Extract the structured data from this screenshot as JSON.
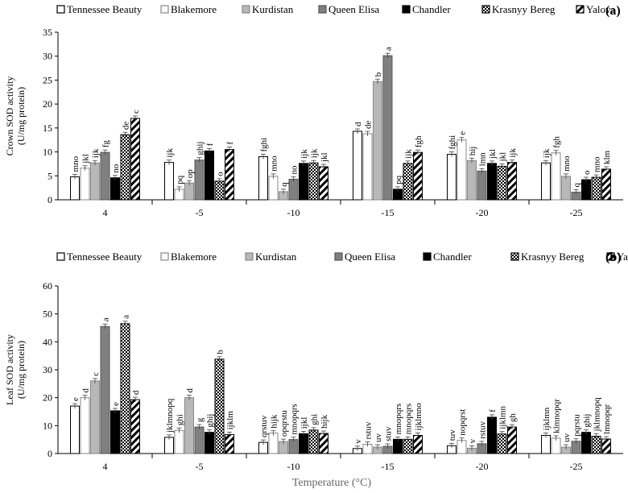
{
  "chart_data": [
    {
      "type": "bar",
      "panel_label": "(a)",
      "ylabel_line1": "Crown SOD activity",
      "ylabel_line2": "(U/mg protein)",
      "ylim": [
        0,
        35
      ],
      "yticks": [
        0,
        5,
        10,
        15,
        20,
        25,
        30,
        35
      ],
      "categories": [
        "4",
        "-5",
        "-10",
        "-15",
        "-20",
        "-25"
      ],
      "legend_position": "top",
      "grid": false,
      "series": [
        {
          "name": "Tennessee Beauty",
          "values": [
            4.8,
            7.8,
            9.0,
            14.3,
            9.5,
            7.7
          ],
          "letters": [
            "mno",
            "ijk",
            "fghi",
            "d",
            "fghi",
            "ijk"
          ]
        },
        {
          "name": "Blakemore",
          "values": [
            6.6,
            2.2,
            4.9,
            13.8,
            12.5,
            9.8
          ],
          "letters": [
            "jkl",
            "pq",
            "mno",
            "de",
            "e",
            "fgh"
          ]
        },
        {
          "name": "Kurdistan",
          "values": [
            7.7,
            3.5,
            1.7,
            24.7,
            8.2,
            4.9
          ],
          "letters": [
            "ijk",
            "op",
            "q",
            "b",
            "hij",
            "mno"
          ]
        },
        {
          "name": "Queen Elisa",
          "values": [
            9.9,
            8.3,
            4.3,
            30.1,
            6.0,
            1.6
          ],
          "letters": [
            "fg",
            "ghij",
            "no",
            "a",
            "lmn",
            "q"
          ]
        },
        {
          "name": "Chandler",
          "values": [
            4.6,
            10.2,
            7.6,
            2.2,
            7.6,
            4.2
          ],
          "letters": [
            "no",
            "f",
            "ijk",
            "pq",
            "jkl",
            "o"
          ]
        },
        {
          "name": "Krasnyy Bereg",
          "values": [
            13.6,
            3.9,
            7.7,
            7.6,
            7.0,
            4.7
          ],
          "letters": [
            "de",
            "o",
            "ijk",
            "ijk",
            "jkl",
            "mno"
          ]
        },
        {
          "name": "Yalova",
          "values": [
            17.0,
            10.5,
            6.9,
            9.9,
            7.8,
            6.4
          ],
          "letters": [
            "c",
            "f",
            "jkl",
            "fgh",
            "ijk",
            "klm"
          ]
        }
      ]
    },
    {
      "type": "bar",
      "panel_label": "(b)",
      "ylabel_line1": "Leaf SOD activity",
      "ylabel_line2": "(U/mg protein)",
      "xlabel": "Temperature (°C)",
      "ylim": [
        0,
        60
      ],
      "yticks": [
        0,
        10,
        20,
        30,
        40,
        50,
        60
      ],
      "categories": [
        "4",
        "-5",
        "-10",
        "-15",
        "-20",
        "-25"
      ],
      "legend_position": "top",
      "grid": false,
      "series": [
        {
          "name": "Tennessee Beauty",
          "values": [
            17.0,
            5.8,
            4.0,
            1.8,
            2.8,
            6.5
          ],
          "letters": [
            "e",
            "jklmnopq",
            "qrstuv",
            "v",
            "tuv",
            "ijklmn"
          ]
        },
        {
          "name": "Blakemore",
          "values": [
            20.0,
            8.3,
            7.3,
            3.3,
            4.7,
            5.5
          ],
          "letters": [
            "d",
            "ghi",
            "hijk",
            "rstuv",
            "nopqrst",
            "klmnopqr"
          ]
        },
        {
          "name": "Kurdistan",
          "values": [
            26.0,
            20.0,
            4.3,
            2.3,
            1.9,
            2.3
          ],
          "letters": [
            "c",
            "d",
            "opqrstu",
            "uv",
            "v",
            "uv"
          ]
        },
        {
          "name": "Queen Elisa",
          "values": [
            45.5,
            9.5,
            5.0,
            2.6,
            3.5,
            4.4
          ],
          "letters": [
            "a",
            "g",
            "mnopqrs",
            "stuv",
            "rstuv",
            "pqrstu"
          ]
        },
        {
          "name": "Chandler",
          "values": [
            15.3,
            7.6,
            7.1,
            5.1,
            13.0,
            7.6
          ],
          "letters": [
            "e",
            "ghij",
            "ijkl",
            "mnopqrs",
            "f",
            "ghij"
          ]
        },
        {
          "name": "Krasnyy Bereg",
          "values": [
            46.5,
            33.8,
            8.4,
            5.1,
            7.0,
            6.2
          ],
          "letters": [
            "a",
            "b",
            "ghi",
            "mnopqrs",
            "ijklmn",
            "jklmnopq"
          ]
        },
        {
          "name": "Yalova",
          "values": [
            19.3,
            6.8,
            7.2,
            6.5,
            9.5,
            5.2
          ],
          "letters": [
            "d",
            "ijklm",
            "hijk",
            "ijklmno",
            "gh",
            "lmnopqr"
          ]
        }
      ]
    }
  ]
}
